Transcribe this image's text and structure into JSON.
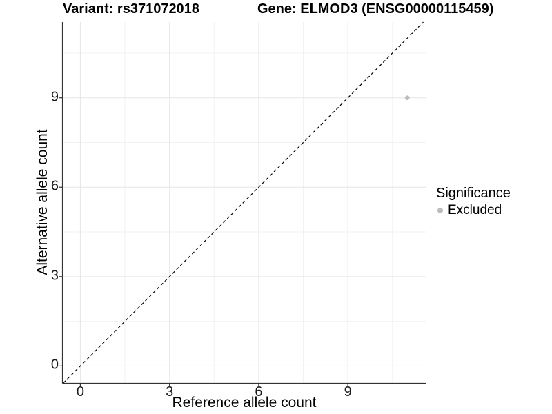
{
  "header": {
    "title_left": "Variant: rs371072018",
    "title_right": "Gene: ELMOD3 (ENSG00000115459)"
  },
  "chart_data": {
    "type": "scatter",
    "title": "Variant: rs371072018   Gene: ELMOD3 (ENSG00000115459)",
    "xlabel": "Reference allele count",
    "ylabel": "Alternative allele count",
    "xlim": [
      -0.59,
      11.62
    ],
    "ylim": [
      -0.57,
      11.54
    ],
    "x_major_ticks": [
      0,
      3,
      6,
      9
    ],
    "y_major_ticks": [
      0,
      3,
      6,
      9
    ],
    "x_minor_gridlines": [
      1.5,
      4.5,
      7.5,
      10.5
    ],
    "y_minor_gridlines": [
      1.5,
      4.5,
      7.5,
      10.5
    ],
    "grid": true,
    "identity_line": {
      "show": true,
      "style": "dashed",
      "slope": 1,
      "intercept": 0
    },
    "series": [
      {
        "name": "Excluded",
        "color": "#bcbcbc",
        "points": [
          {
            "x": 11,
            "y": 9
          }
        ]
      }
    ],
    "legend": {
      "title": "Significance",
      "position": "right",
      "items": [
        {
          "label": "Excluded",
          "color": "#bcbcbc"
        }
      ]
    },
    "colors": {
      "background": "#ffffff",
      "grid_major": "#e6e6e6",
      "grid_minor": "#f2f2f2",
      "axis_line": "#333333",
      "tick_mark": "#333333",
      "tick_text": "#1a1a1a",
      "dashed_line": "#000000"
    }
  }
}
